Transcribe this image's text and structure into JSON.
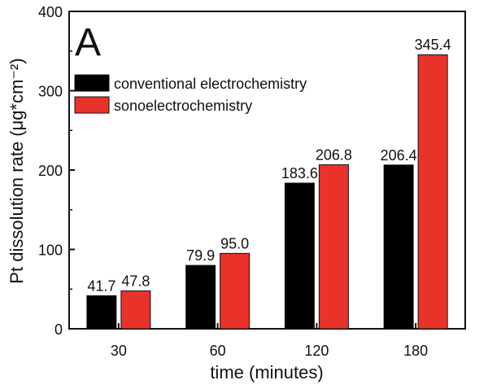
{
  "chart_data": {
    "type": "bar",
    "panel_label": "A",
    "title": "",
    "xlabel": "time (minutes)",
    "ylabel": "Pt dissolution rate (μg*cm⁻²)",
    "ylim": [
      0,
      400
    ],
    "yticks": [
      "0",
      "100",
      "200",
      "300",
      "400"
    ],
    "categories": [
      "30",
      "60",
      "120",
      "180"
    ],
    "series": [
      {
        "name": "conventional electrochemistry",
        "color": "#000000",
        "values": [
          41.7,
          79.9,
          183.6,
          206.4
        ],
        "labels": [
          "41.7",
          "79.9",
          "183.6",
          "206.4"
        ]
      },
      {
        "name": "sonoelectrochemistry",
        "color": "#e8322a",
        "values": [
          47.8,
          95.0,
          206.8,
          345.4
        ],
        "labels": [
          "47.8",
          "95.0",
          "206.8",
          "345.4"
        ]
      }
    ],
    "legend_position": "top-left",
    "grid": false
  }
}
